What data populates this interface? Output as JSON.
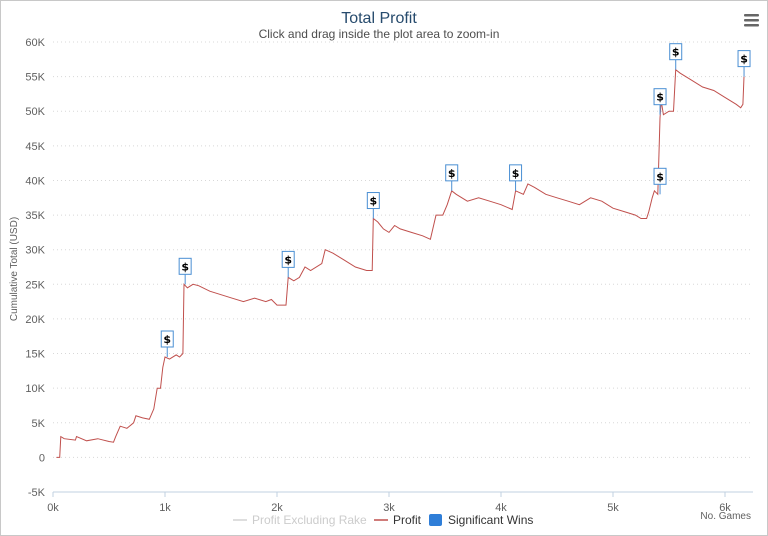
{
  "menu_icon": "hamburger-menu-icon",
  "colors": {
    "profit": "#c0504d",
    "excluding_rake": "#d3d3d3",
    "significant_wins": "#2f7ed8",
    "flag_border": "#4a8fd3",
    "title": "#274b6d",
    "grid": "#d8d8d8"
  },
  "chart_data": {
    "type": "line",
    "title": "Total Profit",
    "subtitle": "Click and drag inside the plot area to zoom-in",
    "xlabel": "No. Games",
    "ylabel": "Cumulative Total (USD)",
    "xlim": [
      0,
      6250
    ],
    "ylim": [
      -5000,
      60000
    ],
    "x_ticks": [
      {
        "value": 0,
        "label": "0k"
      },
      {
        "value": 1000,
        "label": "1k"
      },
      {
        "value": 2000,
        "label": "2k"
      },
      {
        "value": 3000,
        "label": "3k"
      },
      {
        "value": 4000,
        "label": "4k"
      },
      {
        "value": 5000,
        "label": "5k"
      },
      {
        "value": 6000,
        "label": "6k"
      }
    ],
    "y_ticks": [
      {
        "value": -5000,
        "label": "-5K"
      },
      {
        "value": 0,
        "label": "0"
      },
      {
        "value": 5000,
        "label": "5K"
      },
      {
        "value": 10000,
        "label": "10K"
      },
      {
        "value": 15000,
        "label": "15K"
      },
      {
        "value": 20000,
        "label": "20K"
      },
      {
        "value": 25000,
        "label": "25K"
      },
      {
        "value": 30000,
        "label": "30K"
      },
      {
        "value": 35000,
        "label": "35K"
      },
      {
        "value": 40000,
        "label": "40K"
      },
      {
        "value": 45000,
        "label": "45K"
      },
      {
        "value": 50000,
        "label": "50K"
      },
      {
        "value": 55000,
        "label": "55K"
      },
      {
        "value": 60000,
        "label": "60K"
      }
    ],
    "grid": true,
    "legend": "bottom-center",
    "series": [
      {
        "name": "Profit Excluding Rake",
        "hidden": true,
        "points": []
      },
      {
        "name": "Profit",
        "points": [
          [
            30,
            0
          ],
          [
            60,
            0
          ],
          [
            70,
            3000
          ],
          [
            100,
            2700
          ],
          [
            200,
            2500
          ],
          [
            210,
            3000
          ],
          [
            300,
            2400
          ],
          [
            400,
            2700
          ],
          [
            500,
            2300
          ],
          [
            540,
            2200
          ],
          [
            560,
            3000
          ],
          [
            600,
            4500
          ],
          [
            660,
            4200
          ],
          [
            720,
            5000
          ],
          [
            740,
            6000
          ],
          [
            800,
            5700
          ],
          [
            860,
            5500
          ],
          [
            900,
            7000
          ],
          [
            930,
            10000
          ],
          [
            960,
            10000
          ],
          [
            980,
            13000
          ],
          [
            1000,
            14500
          ],
          [
            1040,
            14200
          ],
          [
            1100,
            14800
          ],
          [
            1130,
            14500
          ],
          [
            1160,
            15000
          ],
          [
            1170,
            25000
          ],
          [
            1200,
            24500
          ],
          [
            1250,
            25000
          ],
          [
            1300,
            24800
          ],
          [
            1400,
            24000
          ],
          [
            1500,
            23500
          ],
          [
            1600,
            23000
          ],
          [
            1700,
            22500
          ],
          [
            1800,
            23000
          ],
          [
            1900,
            22500
          ],
          [
            1950,
            22800
          ],
          [
            2000,
            22000
          ],
          [
            2080,
            22000
          ],
          [
            2100,
            26000
          ],
          [
            2150,
            25500
          ],
          [
            2200,
            26000
          ],
          [
            2250,
            27500
          ],
          [
            2300,
            27000
          ],
          [
            2400,
            28000
          ],
          [
            2430,
            30000
          ],
          [
            2500,
            29500
          ],
          [
            2600,
            28500
          ],
          [
            2700,
            27500
          ],
          [
            2800,
            27000
          ],
          [
            2850,
            27000
          ],
          [
            2860,
            34500
          ],
          [
            2900,
            34000
          ],
          [
            2950,
            33000
          ],
          [
            3000,
            32500
          ],
          [
            3050,
            33500
          ],
          [
            3100,
            33000
          ],
          [
            3200,
            32500
          ],
          [
            3300,
            32000
          ],
          [
            3370,
            31500
          ],
          [
            3420,
            35000
          ],
          [
            3480,
            35000
          ],
          [
            3520,
            36500
          ],
          [
            3560,
            38500
          ],
          [
            3600,
            38000
          ],
          [
            3700,
            37000
          ],
          [
            3800,
            37500
          ],
          [
            3900,
            37000
          ],
          [
            4000,
            36500
          ],
          [
            4100,
            35800
          ],
          [
            4130,
            38500
          ],
          [
            4200,
            38000
          ],
          [
            4240,
            39500
          ],
          [
            4300,
            39000
          ],
          [
            4400,
            38000
          ],
          [
            4500,
            37500
          ],
          [
            4600,
            37000
          ],
          [
            4700,
            36500
          ],
          [
            4800,
            37500
          ],
          [
            4900,
            37000
          ],
          [
            5000,
            36000
          ],
          [
            5100,
            35500
          ],
          [
            5200,
            35000
          ],
          [
            5250,
            34500
          ],
          [
            5300,
            34500
          ],
          [
            5320,
            35500
          ],
          [
            5350,
            37500
          ],
          [
            5370,
            38500
          ],
          [
            5400,
            38000
          ],
          [
            5420,
            49000
          ],
          [
            5430,
            51500
          ],
          [
            5450,
            49500
          ],
          [
            5500,
            50000
          ],
          [
            5540,
            50000
          ],
          [
            5560,
            56000
          ],
          [
            5600,
            55500
          ],
          [
            5700,
            54500
          ],
          [
            5800,
            53500
          ],
          [
            5900,
            53000
          ],
          [
            6000,
            52000
          ],
          [
            6100,
            51000
          ],
          [
            6140,
            50500
          ],
          [
            6160,
            51000
          ],
          [
            6170,
            55000
          ]
        ]
      },
      {
        "name": "Significant Wins",
        "points": [
          [
            1020,
            14500
          ],
          [
            1180,
            25000
          ],
          [
            2100,
            26000
          ],
          [
            2860,
            34500
          ],
          [
            3560,
            38500
          ],
          [
            4130,
            38500
          ],
          [
            5420,
            38000
          ],
          [
            5420,
            49500
          ],
          [
            5560,
            56000
          ],
          [
            6170,
            55000
          ]
        ]
      }
    ],
    "flag_label": "$"
  }
}
